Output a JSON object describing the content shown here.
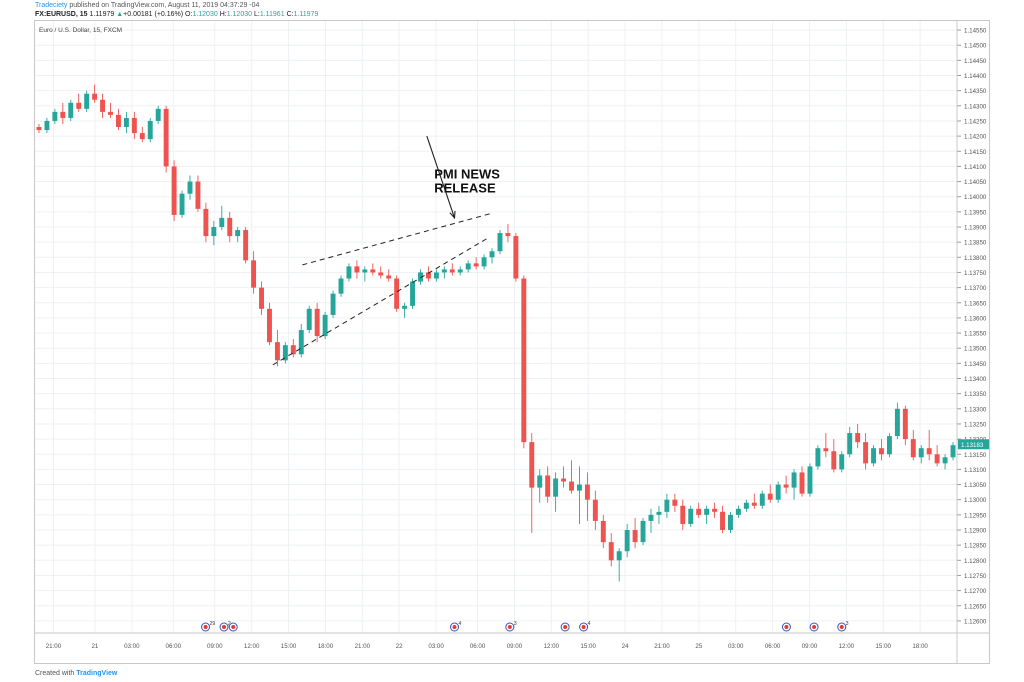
{
  "header": {
    "publisher": "Tradeciety",
    "published_text": "published on TradingView.com, August 11, 2019 04:37:29 -04",
    "symbol": "FX:EURUSD, 15",
    "last": "1.11979",
    "change": "+0.00181 (+0.16%)",
    "ohlc": {
      "o_label": "O:",
      "o": "1.12030",
      "h_label": "H:",
      "h": "1.12030",
      "l_label": "L:",
      "l": "1.11961",
      "c_label": "C:",
      "c": "1.11979"
    }
  },
  "footer": {
    "created_with": "Created with",
    "brand": "TradingView"
  },
  "colors": {
    "up": "#26a69a",
    "down": "#ef5350",
    "grid": "#eef1f4",
    "axis_text": "#555555",
    "price_label_bg": "#26a69a"
  },
  "chart_data": {
    "type": "candlestick",
    "title": "Euro / U.S. Dollar, 15, FXCM",
    "annotation": "PMI NEWS\nRELEASE",
    "y_range": [
      1.1257,
      1.1457
    ],
    "y_ticks": [
      "1.14550",
      "1.14500",
      "1.14450",
      "1.14400",
      "1.14350",
      "1.14300",
      "1.14250",
      "1.14200",
      "1.14150",
      "1.14100",
      "1.14050",
      "1.14000",
      "1.13950",
      "1.13900",
      "1.13850",
      "1.13800",
      "1.13750",
      "1.13700",
      "1.13650",
      "1.13600",
      "1.13550",
      "1.13500",
      "1.13450",
      "1.13400",
      "1.13350",
      "1.13300",
      "1.13250",
      "1.13200",
      "1.13150",
      "1.13100",
      "1.13050",
      "1.13000",
      "1.12950",
      "1.12900",
      "1.12850",
      "1.12800",
      "1.12750",
      "1.12700",
      "1.12650",
      "1.12600"
    ],
    "current_price_label": "1.13183",
    "x_ticks": [
      "21:00",
      "21",
      "03:00",
      "06:00",
      "09:00",
      "12:00",
      "15:00",
      "18:00",
      "21:00",
      "22",
      "03:00",
      "06:00",
      "09:00",
      "12:00",
      "15:00",
      "24",
      "21:00",
      "25",
      "03:00",
      "06:00",
      "09:00",
      "12:00",
      "15:00",
      "18:00"
    ],
    "x_range": [
      0,
      100
    ],
    "x_tick_positions": [
      2,
      6.5,
      10.5,
      15,
      19.5,
      23.5,
      27.5,
      31.5,
      35.5,
      39.5,
      43.5,
      48,
      52,
      56,
      60,
      64,
      68,
      72,
      76,
      80,
      84,
      88,
      92,
      96
    ],
    "events": [
      {
        "x": 18.5,
        "label": "29"
      },
      {
        "x": 20.5,
        "label": "2"
      },
      {
        "x": 21.5,
        "label": ""
      },
      {
        "x": 45.5,
        "label": "4"
      },
      {
        "x": 51.5,
        "label": "3"
      },
      {
        "x": 57.5,
        "label": ""
      },
      {
        "x": 59.5,
        "label": "4"
      },
      {
        "x": 81.5,
        "label": ""
      },
      {
        "x": 84.5,
        "label": ""
      },
      {
        "x": 87.5,
        "label": "3"
      }
    ],
    "trendlines": [
      {
        "x1": 29.0,
        "y1": 1.13775,
        "x2": 49.5,
        "y2": 1.13945
      },
      {
        "x1": 25.8,
        "y1": 1.13445,
        "x2": 49.2,
        "y2": 1.13865
      }
    ],
    "arrow": {
      "x1": 42.5,
      "y1": 1.142,
      "x2": 45.5,
      "y2": 1.1393
    },
    "candles": [
      [
        1.1423,
        1.1424,
        1.1421,
        1.1422
      ],
      [
        1.1422,
        1.1426,
        1.1421,
        1.1425
      ],
      [
        1.1425,
        1.1429,
        1.1424,
        1.1428
      ],
      [
        1.1428,
        1.1431,
        1.1424,
        1.1426
      ],
      [
        1.1426,
        1.1432,
        1.1425,
        1.1431
      ],
      [
        1.1431,
        1.1434,
        1.1428,
        1.1429
      ],
      [
        1.1429,
        1.1435,
        1.1428,
        1.1434
      ],
      [
        1.1434,
        1.1437,
        1.1431,
        1.1432
      ],
      [
        1.1432,
        1.1434,
        1.1426,
        1.1428
      ],
      [
        1.1428,
        1.1431,
        1.1426,
        1.1427
      ],
      [
        1.1427,
        1.1429,
        1.1422,
        1.1423
      ],
      [
        1.1423,
        1.1428,
        1.1421,
        1.1426
      ],
      [
        1.1426,
        1.1428,
        1.1419,
        1.1421
      ],
      [
        1.1421,
        1.1423,
        1.1418,
        1.1419
      ],
      [
        1.1419,
        1.1426,
        1.1418,
        1.1425
      ],
      [
        1.1425,
        1.143,
        1.1424,
        1.1429
      ],
      [
        1.1429,
        1.143,
        1.1408,
        1.141
      ],
      [
        1.141,
        1.1412,
        1.1392,
        1.1394
      ],
      [
        1.1394,
        1.1402,
        1.1393,
        1.1401
      ],
      [
        1.1401,
        1.1407,
        1.1399,
        1.1405
      ],
      [
        1.1405,
        1.1407,
        1.1395,
        1.1396
      ],
      [
        1.1396,
        1.1398,
        1.1385,
        1.1387
      ],
      [
        1.1387,
        1.1392,
        1.1384,
        1.139
      ],
      [
        1.139,
        1.1397,
        1.1389,
        1.1393
      ],
      [
        1.1393,
        1.1395,
        1.1385,
        1.1387
      ],
      [
        1.1387,
        1.139,
        1.1385,
        1.1389
      ],
      [
        1.1389,
        1.139,
        1.1378,
        1.1379
      ],
      [
        1.1379,
        1.1382,
        1.1368,
        1.137
      ],
      [
        1.137,
        1.1372,
        1.1361,
        1.1363
      ],
      [
        1.1363,
        1.1365,
        1.1351,
        1.1352
      ],
      [
        1.1352,
        1.1356,
        1.1344,
        1.1346
      ],
      [
        1.1346,
        1.1352,
        1.1345,
        1.1351
      ],
      [
        1.1351,
        1.1353,
        1.1347,
        1.1348
      ],
      [
        1.1348,
        1.1358,
        1.1347,
        1.1356
      ],
      [
        1.1356,
        1.1364,
        1.1355,
        1.1363
      ],
      [
        1.1363,
        1.1365,
        1.1352,
        1.1354
      ],
      [
        1.1354,
        1.1362,
        1.1353,
        1.1361
      ],
      [
        1.1361,
        1.1369,
        1.136,
        1.1368
      ],
      [
        1.1368,
        1.1374,
        1.1367,
        1.1373
      ],
      [
        1.1373,
        1.1378,
        1.1372,
        1.1377
      ],
      [
        1.1377,
        1.1379,
        1.1373,
        1.1375
      ],
      [
        1.1375,
        1.1377,
        1.1372,
        1.1376
      ],
      [
        1.1376,
        1.1378,
        1.1374,
        1.1375
      ],
      [
        1.1375,
        1.1377,
        1.1373,
        1.1374
      ],
      [
        1.1374,
        1.1376,
        1.1372,
        1.1373
      ],
      [
        1.1373,
        1.1374,
        1.1362,
        1.1363
      ],
      [
        1.1363,
        1.1365,
        1.136,
        1.1364
      ],
      [
        1.1364,
        1.1373,
        1.1363,
        1.1372
      ],
      [
        1.1372,
        1.1376,
        1.1371,
        1.1375
      ],
      [
        1.1375,
        1.1377,
        1.1372,
        1.1373
      ],
      [
        1.1373,
        1.1376,
        1.1372,
        1.1375
      ],
      [
        1.1375,
        1.1377,
        1.1373,
        1.1376
      ],
      [
        1.1376,
        1.1378,
        1.1374,
        1.1375
      ],
      [
        1.1375,
        1.1377,
        1.1374,
        1.1376
      ],
      [
        1.1376,
        1.1379,
        1.1375,
        1.1378
      ],
      [
        1.1378,
        1.138,
        1.1376,
        1.1377
      ],
      [
        1.1377,
        1.1381,
        1.1376,
        1.138
      ],
      [
        1.138,
        1.1383,
        1.1378,
        1.1382
      ],
      [
        1.1382,
        1.1389,
        1.1381,
        1.1388
      ],
      [
        1.1388,
        1.1391,
        1.1385,
        1.1387
      ],
      [
        1.1387,
        1.1388,
        1.1372,
        1.1373
      ],
      [
        1.1373,
        1.1374,
        1.1317,
        1.1319
      ],
      [
        1.1319,
        1.1322,
        1.1289,
        1.1304
      ],
      [
        1.1304,
        1.131,
        1.1299,
        1.1308
      ],
      [
        1.1308,
        1.1311,
        1.1299,
        1.1301
      ],
      [
        1.1301,
        1.1309,
        1.1296,
        1.1307
      ],
      [
        1.1307,
        1.1311,
        1.1304,
        1.1306
      ],
      [
        1.1306,
        1.1313,
        1.1302,
        1.1303
      ],
      [
        1.1303,
        1.1311,
        1.1292,
        1.1305
      ],
      [
        1.1305,
        1.1309,
        1.1293,
        1.13
      ],
      [
        1.13,
        1.1303,
        1.129,
        1.1293
      ],
      [
        1.1293,
        1.1295,
        1.1284,
        1.1286
      ],
      [
        1.1286,
        1.1289,
        1.1278,
        1.128
      ],
      [
        1.128,
        1.1284,
        1.1273,
        1.1283
      ],
      [
        1.1283,
        1.1292,
        1.1281,
        1.129
      ],
      [
        1.129,
        1.1294,
        1.1284,
        1.1286
      ],
      [
        1.1286,
        1.1294,
        1.1285,
        1.1293
      ],
      [
        1.1293,
        1.1297,
        1.1289,
        1.1295
      ],
      [
        1.1295,
        1.1298,
        1.1292,
        1.1296
      ],
      [
        1.1296,
        1.1302,
        1.1294,
        1.13
      ],
      [
        1.13,
        1.1302,
        1.1296,
        1.1298
      ],
      [
        1.1298,
        1.13,
        1.129,
        1.1292
      ],
      [
        1.1292,
        1.1298,
        1.1291,
        1.1297
      ],
      [
        1.1297,
        1.1299,
        1.1294,
        1.1295
      ],
      [
        1.1295,
        1.1298,
        1.1292,
        1.1297
      ],
      [
        1.1297,
        1.1299,
        1.1294,
        1.1296
      ],
      [
        1.1296,
        1.1298,
        1.1289,
        1.129
      ],
      [
        1.129,
        1.1296,
        1.1289,
        1.1295
      ],
      [
        1.1295,
        1.1298,
        1.1294,
        1.1297
      ],
      [
        1.1297,
        1.13,
        1.1296,
        1.1299
      ],
      [
        1.1299,
        1.1302,
        1.1297,
        1.1298
      ],
      [
        1.1298,
        1.1303,
        1.1297,
        1.1302
      ],
      [
        1.1302,
        1.1305,
        1.1299,
        1.13
      ],
      [
        1.13,
        1.1306,
        1.1299,
        1.1305
      ],
      [
        1.1305,
        1.1308,
        1.1302,
        1.1304
      ],
      [
        1.1304,
        1.131,
        1.13,
        1.1309
      ],
      [
        1.1309,
        1.1311,
        1.1301,
        1.1302
      ],
      [
        1.1302,
        1.1312,
        1.1301,
        1.1311
      ],
      [
        1.1311,
        1.1318,
        1.131,
        1.1317
      ],
      [
        1.1317,
        1.1322,
        1.1314,
        1.1316
      ],
      [
        1.1316,
        1.132,
        1.1309,
        1.131
      ],
      [
        1.131,
        1.1316,
        1.1309,
        1.1315
      ],
      [
        1.1315,
        1.1324,
        1.1314,
        1.1322
      ],
      [
        1.1322,
        1.1325,
        1.1317,
        1.1319
      ],
      [
        1.1319,
        1.1322,
        1.131,
        1.1312
      ],
      [
        1.1312,
        1.1318,
        1.1311,
        1.1317
      ],
      [
        1.1317,
        1.132,
        1.1313,
        1.1315
      ],
      [
        1.1315,
        1.1322,
        1.1314,
        1.1321
      ],
      [
        1.1321,
        1.1332,
        1.132,
        1.133
      ],
      [
        1.133,
        1.1331,
        1.1318,
        1.132
      ],
      [
        1.132,
        1.1323,
        1.1313,
        1.1314
      ],
      [
        1.1314,
        1.1318,
        1.1312,
        1.1317
      ],
      [
        1.1317,
        1.1323,
        1.1313,
        1.1315
      ],
      [
        1.1315,
        1.1318,
        1.1311,
        1.1312
      ],
      [
        1.1312,
        1.1315,
        1.131,
        1.1314
      ],
      [
        1.1314,
        1.1319,
        1.1313,
        1.1318
      ]
    ]
  }
}
